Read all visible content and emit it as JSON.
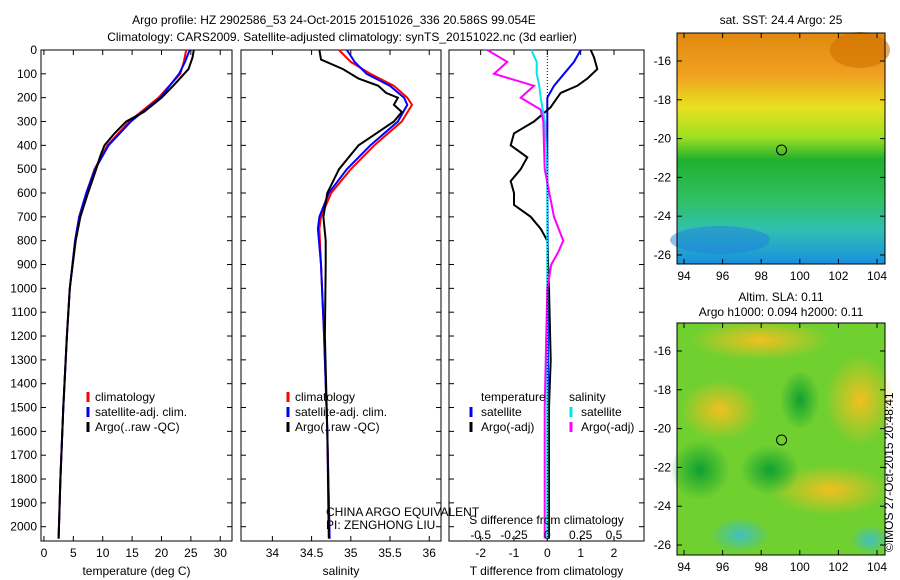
{
  "header": {
    "title": "Argo profile: HZ 2902586_53 24-Oct-2015 20151026_336 20.586S 99.054E",
    "subtitle": "Climatology: CARS2009. Satellite-adjusted climatology: synTS_20151022.nc (3d earlier)"
  },
  "colors": {
    "climatology": "#ff0000",
    "satellite": "#0000ff",
    "argo": "#000000",
    "s_satellite": "#00e5ee",
    "s_argo": "#ff00ff"
  },
  "chart_data": [
    {
      "type": "line",
      "name": "temperature",
      "xlabel": "temperature (deg C)",
      "xlim": [
        -0.5,
        32
      ],
      "ylim": [
        2060,
        0
      ],
      "xticks": [
        "0",
        "5",
        "10",
        "15",
        "20",
        "25",
        "30"
      ],
      "xtick_values": [
        0,
        5,
        10,
        15,
        20,
        25,
        30
      ],
      "yticks": [
        "0",
        "100",
        "200",
        "300",
        "400",
        "500",
        "600",
        "700",
        "800",
        "900",
        "1000",
        "1100",
        "1200",
        "1300",
        "1400",
        "1500",
        "1600",
        "1700",
        "1800",
        "1900",
        "2000"
      ],
      "legend": [
        "climatology",
        "satellite-adj. clim.",
        "Argo(..raw -QC)"
      ],
      "series": [
        {
          "name": "climatology",
          "depth": [
            0,
            50,
            100,
            200,
            300,
            400,
            500,
            600,
            700,
            800,
            1000,
            1200,
            1500,
            1800,
            2050
          ],
          "values": [
            24.2,
            23.8,
            23.2,
            19.5,
            14.5,
            10.8,
            8.6,
            7.2,
            6.0,
            5.3,
            4.4,
            3.9,
            3.3,
            2.8,
            2.5
          ]
        },
        {
          "name": "satellite-adj. clim.",
          "depth": [
            0,
            50,
            100,
            200,
            300,
            400,
            500,
            600,
            700,
            800,
            1000,
            1200,
            1500,
            1800,
            2050
          ],
          "values": [
            24.8,
            24.0,
            23.0,
            19.8,
            14.8,
            11.0,
            8.7,
            7.2,
            6.0,
            5.3,
            4.4,
            3.9,
            3.3,
            2.8,
            2.5
          ]
        },
        {
          "name": "Argo(..raw -QC)",
          "depth": [
            0,
            30,
            80,
            150,
            200,
            260,
            300,
            350,
            400,
            450,
            500,
            600,
            700,
            800,
            1000,
            1200,
            1500,
            1800,
            2050
          ],
          "values": [
            25.5,
            25.3,
            24.6,
            22.0,
            20.0,
            17.0,
            14.0,
            12.0,
            10.3,
            9.5,
            8.9,
            7.5,
            6.2,
            5.4,
            4.4,
            3.9,
            3.3,
            2.8,
            2.5
          ]
        }
      ]
    },
    {
      "type": "line",
      "name": "salinity",
      "xlabel": "salinity",
      "xlim": [
        33.6,
        36.15
      ],
      "ylim": [
        2060,
        0
      ],
      "xticks": [
        "34",
        "34.5",
        "35",
        "35.5",
        "36"
      ],
      "xtick_values": [
        34,
        34.5,
        35,
        35.5,
        36
      ],
      "legend": [
        "climatology",
        "satellite-adj. clim.",
        "Argo(..raw -QC)"
      ],
      "annotation": [
        "CHINA ARGO EQUIVALENT",
        "PI: ZENGHONG LIU"
      ],
      "series": [
        {
          "name": "climatology",
          "depth": [
            0,
            50,
            100,
            150,
            200,
            230,
            300,
            400,
            500,
            600,
            700,
            750,
            900,
            1200,
            1600,
            2050
          ],
          "values": [
            34.85,
            35.0,
            35.25,
            35.55,
            35.72,
            35.78,
            35.65,
            35.3,
            35.0,
            34.75,
            34.62,
            34.6,
            34.62,
            34.66,
            34.7,
            34.73
          ]
        },
        {
          "name": "satellite-adj. clim.",
          "depth": [
            0,
            50,
            100,
            150,
            200,
            230,
            300,
            400,
            500,
            600,
            700,
            750,
            900,
            1200,
            1600,
            2050
          ],
          "values": [
            34.95,
            35.05,
            35.2,
            35.5,
            35.68,
            35.72,
            35.6,
            35.25,
            34.95,
            34.72,
            34.6,
            34.58,
            34.62,
            34.66,
            34.7,
            34.73
          ]
        },
        {
          "name": "Argo(..raw -QC)",
          "depth": [
            0,
            40,
            80,
            120,
            150,
            180,
            200,
            230,
            260,
            300,
            400,
            500,
            600,
            700,
            800,
            900,
            1200,
            1600,
            2050
          ],
          "values": [
            34.6,
            34.62,
            34.9,
            35.1,
            35.35,
            35.45,
            35.6,
            35.55,
            35.65,
            35.55,
            35.1,
            34.85,
            34.7,
            34.65,
            34.68,
            34.68,
            34.67,
            34.7,
            34.72
          ]
        }
      ]
    },
    {
      "type": "line",
      "name": "difference",
      "xlabel": "T difference from climatology",
      "x2label": "S difference from climatology",
      "xlim": [
        -2.95,
        2.9
      ],
      "ylim": [
        2060,
        0
      ],
      "xticks": [
        "-2",
        "-1",
        "0",
        "1",
        "2"
      ],
      "xtick_values": [
        -2,
        -1,
        0,
        1,
        2
      ],
      "x2ticks": [
        "-0.5",
        "-0.25",
        "0",
        "0.25",
        "0.5"
      ],
      "x2tick_values": [
        -0.5,
        -0.25,
        0,
        0.25,
        0.5
      ],
      "legend_titles": [
        "temperature",
        "salinity"
      ],
      "legend": [
        "satellite",
        "Argo(-adj)",
        "satellite",
        "Argo(-adj)"
      ],
      "series": [
        {
          "name": "T satellite",
          "units": "T",
          "depth": [
            0,
            50,
            100,
            150,
            200,
            300,
            500,
            1000,
            2050
          ],
          "values": [
            1.0,
            0.8,
            0.5,
            0.2,
            0.0,
            0.0,
            0.0,
            0.02,
            0.02
          ]
        },
        {
          "name": "T Argo(-adj)",
          "units": "T",
          "depth": [
            0,
            30,
            80,
            120,
            150,
            180,
            200,
            240,
            300,
            350,
            400,
            450,
            500,
            550,
            600,
            650,
            700,
            750,
            800,
            1000,
            1300,
            1500,
            2050
          ],
          "values": [
            1.3,
            1.4,
            1.5,
            1.2,
            0.9,
            0.4,
            0.3,
            0.1,
            -0.4,
            -1.0,
            -1.1,
            -0.6,
            -0.8,
            -1.1,
            -1.0,
            -1.0,
            -0.5,
            -0.2,
            0.0,
            0.05,
            0.1,
            0.05,
            0.05
          ]
        },
        {
          "name": "S satellite",
          "units": "S",
          "depth": [
            0,
            50,
            100,
            150,
            200,
            300,
            500,
            1000,
            2050
          ],
          "values": [
            -0.12,
            -0.08,
            -0.08,
            -0.06,
            -0.05,
            -0.02,
            0.0,
            0.0,
            0.0
          ]
        },
        {
          "name": "S Argo(-adj)",
          "units": "S",
          "depth": [
            0,
            50,
            100,
            150,
            200,
            250,
            300,
            500,
            700,
            800,
            850,
            900,
            1000,
            1500,
            2050
          ],
          "values": [
            -0.45,
            -0.3,
            -0.4,
            -0.1,
            -0.2,
            -0.05,
            -0.03,
            -0.02,
            0.05,
            0.12,
            0.08,
            0.03,
            0.0,
            -0.02,
            -0.02
          ]
        }
      ]
    }
  ],
  "maps": [
    {
      "title": "sat. SST: 24.4 Argo: 25",
      "xticks": [
        "94",
        "96",
        "98",
        "100",
        "102",
        "104"
      ],
      "yticks": [
        "-16",
        "-18",
        "-20",
        "-22",
        "-24",
        "-26"
      ],
      "marker": {
        "lon": 99.054,
        "lat": -20.586
      }
    },
    {
      "title": "Altim. SLA: 0.11",
      "subtitle": "Argo h1000: 0.094 h2000: 0.11",
      "xticks": [
        "94",
        "96",
        "98",
        "100",
        "102",
        "104"
      ],
      "yticks": [
        "-16",
        "-18",
        "-20",
        "-22",
        "-24",
        "-26"
      ],
      "marker": {
        "lon": 99.054,
        "lat": -20.586
      }
    }
  ],
  "footer": {
    "credit": "©IMOS 27-Oct-2015 20:48:41"
  }
}
